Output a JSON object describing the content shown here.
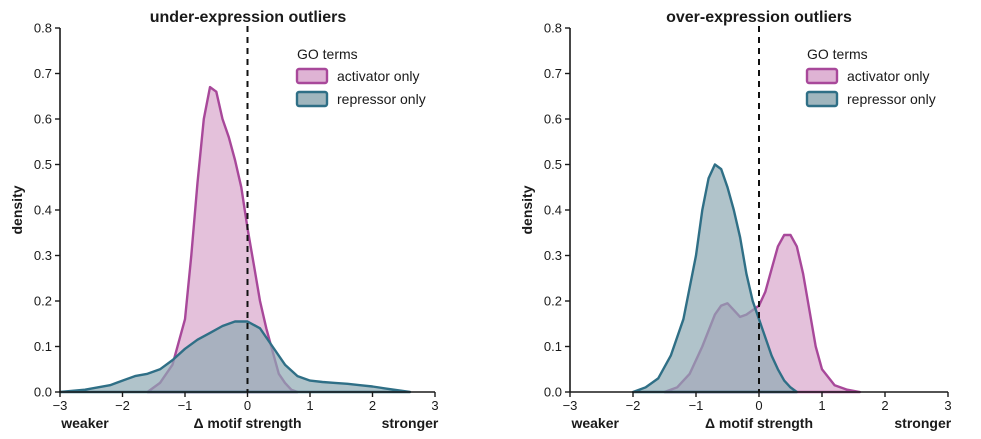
{
  "series_styles": {
    "activator": {
      "fill": "#d9a6cc",
      "stroke": "#a8489a"
    },
    "repressor": {
      "fill": "#8fa9b3",
      "stroke": "#2f6f86"
    }
  },
  "chart_data": [
    {
      "type": "area",
      "title": "under-expression outliers",
      "xlabel": "Δ motif strength",
      "ylabel": "density",
      "xlabel_left": "weaker",
      "xlabel_right": "stronger",
      "xlim": [
        -3,
        3
      ],
      "ylim": [
        0,
        0.8
      ],
      "xticks": [
        -3,
        -2,
        -1,
        0,
        1,
        2,
        3
      ],
      "xtick_labels": [
        "−3",
        "−2",
        "−1",
        "0",
        "1",
        "2",
        "3"
      ],
      "yticks": [
        0.0,
        0.1,
        0.2,
        0.3,
        0.4,
        0.5,
        0.6,
        0.7,
        0.8
      ],
      "ytick_labels": [
        "0.0",
        "0.1",
        "0.2",
        "0.3",
        "0.4",
        "0.5",
        "0.6",
        "0.7",
        "0.8"
      ],
      "vline_x": 0,
      "legend": {
        "title": "GO terms",
        "position": "top-right"
      },
      "series": [
        {
          "name": "activator only",
          "style": "activator",
          "x": [
            -1.6,
            -1.4,
            -1.2,
            -1.0,
            -0.9,
            -0.8,
            -0.7,
            -0.6,
            -0.5,
            -0.4,
            -0.3,
            -0.2,
            -0.1,
            0.0,
            0.1,
            0.2,
            0.3,
            0.4,
            0.5,
            0.6,
            0.7,
            0.8
          ],
          "y": [
            0.0,
            0.02,
            0.06,
            0.16,
            0.3,
            0.46,
            0.6,
            0.67,
            0.66,
            0.6,
            0.56,
            0.51,
            0.45,
            0.36,
            0.28,
            0.2,
            0.14,
            0.09,
            0.04,
            0.02,
            0.005,
            0.0
          ]
        },
        {
          "name": "repressor only",
          "style": "repressor",
          "x": [
            -3.0,
            -2.6,
            -2.2,
            -2.0,
            -1.8,
            -1.6,
            -1.4,
            -1.2,
            -1.0,
            -0.8,
            -0.6,
            -0.4,
            -0.2,
            0.0,
            0.2,
            0.4,
            0.6,
            0.8,
            1.0,
            1.2,
            1.4,
            1.6,
            1.8,
            2.0,
            2.2,
            2.4,
            2.6
          ],
          "y": [
            0.0,
            0.005,
            0.015,
            0.025,
            0.035,
            0.04,
            0.05,
            0.07,
            0.095,
            0.115,
            0.13,
            0.145,
            0.155,
            0.155,
            0.14,
            0.1,
            0.06,
            0.035,
            0.025,
            0.022,
            0.02,
            0.018,
            0.015,
            0.012,
            0.008,
            0.004,
            0.0
          ]
        }
      ]
    },
    {
      "type": "area",
      "title": "over-expression outliers",
      "xlabel": "Δ motif strength",
      "ylabel": "density",
      "xlabel_left": "weaker",
      "xlabel_right": "stronger",
      "xlim": [
        -3,
        3
      ],
      "ylim": [
        0,
        0.8
      ],
      "xticks": [
        -3,
        -2,
        -1,
        0,
        1,
        2,
        3
      ],
      "xtick_labels": [
        "−3",
        "−2",
        "−1",
        "0",
        "1",
        "2",
        "3"
      ],
      "yticks": [
        0.0,
        0.1,
        0.2,
        0.3,
        0.4,
        0.5,
        0.6,
        0.7,
        0.8
      ],
      "ytick_labels": [
        "0.0",
        "0.1",
        "0.2",
        "0.3",
        "0.4",
        "0.5",
        "0.6",
        "0.7",
        "0.8"
      ],
      "vline_x": 0,
      "legend": {
        "title": "GO terms",
        "position": "top-right"
      },
      "series": [
        {
          "name": "activator only",
          "style": "activator",
          "x": [
            -1.5,
            -1.3,
            -1.1,
            -0.9,
            -0.7,
            -0.6,
            -0.5,
            -0.4,
            -0.3,
            -0.2,
            -0.1,
            0.0,
            0.1,
            0.2,
            0.3,
            0.4,
            0.5,
            0.6,
            0.7,
            0.8,
            0.9,
            1.0,
            1.2,
            1.4,
            1.6
          ],
          "y": [
            0.0,
            0.01,
            0.04,
            0.1,
            0.17,
            0.19,
            0.195,
            0.18,
            0.165,
            0.17,
            0.18,
            0.19,
            0.22,
            0.27,
            0.32,
            0.345,
            0.345,
            0.32,
            0.26,
            0.18,
            0.1,
            0.05,
            0.015,
            0.005,
            0.0
          ]
        },
        {
          "name": "repressor only",
          "style": "repressor",
          "x": [
            -2.0,
            -1.8,
            -1.6,
            -1.4,
            -1.2,
            -1.0,
            -0.9,
            -0.8,
            -0.7,
            -0.6,
            -0.5,
            -0.4,
            -0.3,
            -0.2,
            -0.1,
            0.0,
            0.1,
            0.2,
            0.3,
            0.4,
            0.5,
            0.6
          ],
          "y": [
            0.0,
            0.01,
            0.03,
            0.08,
            0.16,
            0.3,
            0.4,
            0.47,
            0.5,
            0.49,
            0.45,
            0.4,
            0.34,
            0.26,
            0.2,
            0.16,
            0.12,
            0.08,
            0.05,
            0.025,
            0.01,
            0.0
          ]
        }
      ]
    }
  ]
}
